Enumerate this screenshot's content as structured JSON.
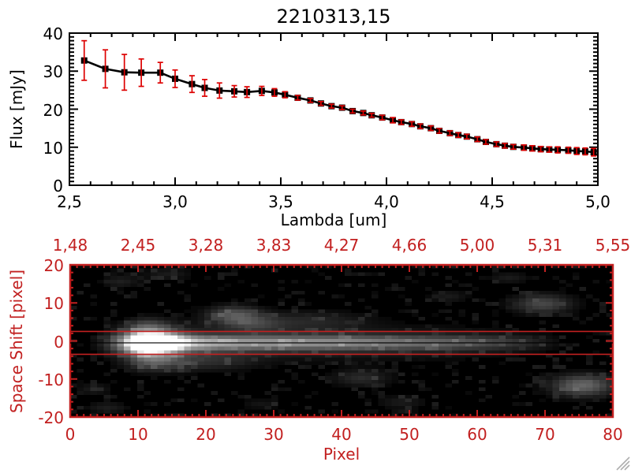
{
  "window": {
    "background": "#ffffff"
  },
  "colors": {
    "plot_black": "#000000",
    "panel_red": "#c22020",
    "errorbar_red": "#dd0000",
    "grip_gray": "#aeaeae"
  },
  "spectrum_plot": {
    "title": "2210313,15",
    "xlabel": "Lambda [um]",
    "ylabel": "Flux [mJy]",
    "x_tick_values": [
      2.5,
      3.0,
      3.5,
      4.0,
      4.5,
      5.0
    ],
    "x_tick_labels": [
      "2,5",
      "3,0",
      "3,5",
      "4,0",
      "4,5",
      "5,0"
    ],
    "y_tick_values": [
      0,
      10,
      20,
      30,
      40
    ],
    "y_tick_labels": [
      "0",
      "10",
      "20",
      "30",
      "40"
    ]
  },
  "image_panel": {
    "xlabel": "Pixel",
    "ylabel": "Space Shift [pixel]",
    "top_axis_labels": [
      "1,48",
      "2,45",
      "3,28",
      "3,83",
      "4,27",
      "4,66",
      "5,00",
      "5,31",
      "5,55"
    ],
    "x_tick_values": [
      0,
      10,
      20,
      30,
      40,
      50,
      60,
      70,
      80
    ],
    "x_tick_labels": [
      "0",
      "10",
      "20",
      "30",
      "40",
      "50",
      "60",
      "70",
      "80"
    ],
    "y_tick_values": [
      20,
      10,
      0,
      -10,
      -20
    ],
    "y_tick_labels": [
      "20",
      "10",
      "0",
      "-10",
      "-20"
    ]
  },
  "chart_data": [
    {
      "type": "line",
      "title": "2210313,15",
      "xlabel": "Lambda [um]",
      "ylabel": "Flux [mJy]",
      "xlim": [
        2.5,
        5.0
      ],
      "ylim": [
        0,
        40
      ],
      "marker": "filled-square",
      "line_color": "#000000",
      "error_color": "#dd0000",
      "x": [
        2.57,
        2.67,
        2.76,
        2.84,
        2.93,
        3.0,
        3.08,
        3.14,
        3.21,
        3.28,
        3.34,
        3.41,
        3.47,
        3.52,
        3.58,
        3.64,
        3.69,
        3.74,
        3.79,
        3.84,
        3.89,
        3.93,
        3.98,
        4.03,
        4.07,
        4.12,
        4.16,
        4.21,
        4.25,
        4.3,
        4.34,
        4.38,
        4.43,
        4.47,
        4.52,
        4.56,
        4.6,
        4.65,
        4.69,
        4.73,
        4.77,
        4.81,
        4.86,
        4.9,
        4.94,
        4.98
      ],
      "series": [
        {
          "name": "flux_mJy",
          "values": [
            32.8,
            30.6,
            29.7,
            29.6,
            29.6,
            28.0,
            26.6,
            25.6,
            24.9,
            24.7,
            24.5,
            24.8,
            24.4,
            23.8,
            23.0,
            22.3,
            21.5,
            20.8,
            20.4,
            19.5,
            19.0,
            18.4,
            17.8,
            17.1,
            16.6,
            16.1,
            15.5,
            15.0,
            14.3,
            13.7,
            13.2,
            12.8,
            12.1,
            11.4,
            10.8,
            10.4,
            10.1,
            9.9,
            9.7,
            9.5,
            9.4,
            9.3,
            9.2,
            9.0,
            8.9,
            8.7
          ]
        }
      ],
      "errors": [
        5.2,
        5.0,
        4.7,
        3.6,
        2.7,
        2.3,
        2.2,
        2.2,
        2.0,
        1.5,
        1.4,
        1.2,
        1.0,
        0.8,
        0.6,
        0.5,
        0.5,
        0.5,
        0.5,
        0.5,
        0.5,
        0.5,
        0.6,
        0.7,
        0.6,
        0.6,
        0.6,
        0.6,
        0.6,
        0.6,
        0.6,
        0.6,
        0.6,
        0.6,
        0.6,
        0.6,
        0.6,
        0.7,
        0.7,
        0.7,
        0.7,
        0.8,
        0.8,
        0.9,
        0.9,
        1.0
      ]
    },
    {
      "type": "heatmap",
      "xlabel": "Pixel",
      "ylabel": "Space Shift [pixel]",
      "xlim": [
        0,
        80
      ],
      "ylim": [
        -20,
        20
      ],
      "top_axis_wavelength_labels": [
        "1,48",
        "2,45",
        "3,28",
        "3,83",
        "4,27",
        "4,66",
        "5,00",
        "5,31",
        "5,55"
      ],
      "trace_center_y": -0.5,
      "aperture_lines_y": [
        2.5,
        -3.5
      ],
      "trace_line_y": -0.5,
      "streak": {
        "x": [
          8,
          9,
          10,
          12,
          14,
          16,
          18,
          20,
          25,
          30,
          35,
          40,
          45,
          50,
          55,
          60,
          64,
          68,
          71,
          74
        ],
        "amp": [
          0.1,
          0.45,
          0.9,
          1.05,
          0.95,
          0.8,
          0.72,
          0.69,
          0.62,
          0.6,
          0.58,
          0.56,
          0.5,
          0.45,
          0.4,
          0.33,
          0.25,
          0.16,
          0.08,
          0.0
        ],
        "sigma_core": 1.35,
        "sigma_halo": 3.2,
        "core_frac": 0.78,
        "halo_frac": 0.22
      },
      "blobs": [
        {
          "x": 11,
          "y": -0.5,
          "sx": 3.2,
          "sy": 2.0,
          "i": 1.25
        },
        {
          "x": 11,
          "y": 4.0,
          "sx": 2.5,
          "sy": 1.5,
          "i": 0.22
        },
        {
          "x": 12,
          "y": -5.5,
          "sx": 3.0,
          "sy": 1.8,
          "i": 0.28
        },
        {
          "x": 24,
          "y": 7.0,
          "sx": 2.8,
          "sy": 1.7,
          "i": 0.32
        },
        {
          "x": 27,
          "y": 4.5,
          "sx": 3.0,
          "sy": 1.5,
          "i": 0.16
        },
        {
          "x": 35,
          "y": 5.5,
          "sx": 6.0,
          "sy": 1.8,
          "i": 0.13
        },
        {
          "x": 20,
          "y": -5.5,
          "sx": 5.0,
          "sy": 1.8,
          "i": 0.14
        },
        {
          "x": 43,
          "y": -10.0,
          "sx": 3.0,
          "sy": 1.6,
          "i": 0.16
        },
        {
          "x": 70,
          "y": 10.0,
          "sx": 3.0,
          "sy": 1.8,
          "i": 0.28
        },
        {
          "x": 76,
          "y": -12.0,
          "sx": 3.2,
          "sy": 2.0,
          "i": 0.4
        },
        {
          "x": 7,
          "y": 16.0,
          "sx": 2.0,
          "sy": 1.2,
          "i": 0.12
        },
        {
          "x": 14,
          "y": 18.0,
          "sx": 2.5,
          "sy": 1.2,
          "i": 0.1
        },
        {
          "x": 56,
          "y": 12.0,
          "sx": 2.0,
          "sy": 1.2,
          "i": 0.1
        },
        {
          "x": 65,
          "y": 17.0,
          "sx": 2.2,
          "sy": 1.1,
          "i": 0.1
        },
        {
          "x": 3,
          "y": -13.0,
          "sx": 1.8,
          "sy": 1.2,
          "i": 0.1
        },
        {
          "x": 5,
          "y": -18.0,
          "sx": 2.2,
          "sy": 1.1,
          "i": 0.11
        },
        {
          "x": 49,
          "y": -16.5,
          "sx": 2.5,
          "sy": 1.3,
          "i": 0.1
        },
        {
          "x": 28,
          "y": -17.0,
          "sx": 2.0,
          "sy": 1.0,
          "i": 0.08
        }
      ],
      "noise_seed": 7,
      "noise_amp": 0.5
    }
  ]
}
